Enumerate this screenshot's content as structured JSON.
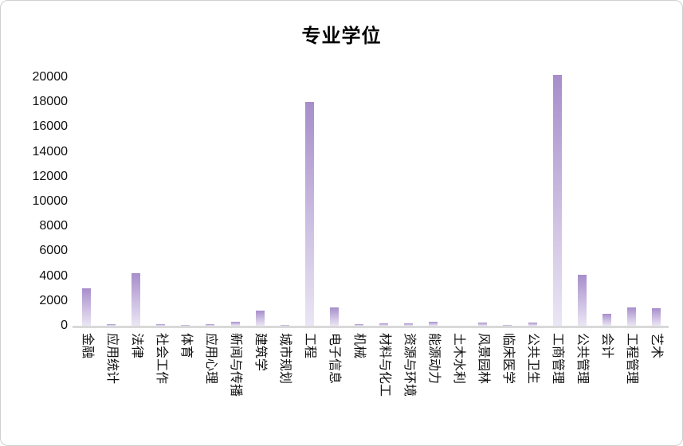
{
  "chart_data": {
    "type": "bar",
    "title": "专业学位",
    "categories": [
      "金融",
      "应用统计",
      "法律",
      "社会工作",
      "体育",
      "应用心理",
      "新闻与传播",
      "建筑学",
      "城市规划",
      "工程",
      "电子信息",
      "机械",
      "材料与化工",
      "资源与环境",
      "能源动力",
      "土木水利",
      "风景园林",
      "临床医学",
      "公共卫生",
      "工商管理",
      "公共管理",
      "会计",
      "工程管理",
      "艺术"
    ],
    "values": [
      3000,
      150,
      4200,
      100,
      80,
      120,
      300,
      1200,
      60,
      18000,
      1450,
      150,
      180,
      180,
      330,
      20,
      280,
      90,
      250,
      20200,
      4100,
      950,
      1450,
      1400
    ],
    "xlabel": "",
    "ylabel": "",
    "ylim": [
      0,
      20000
    ],
    "ytick_step": 2000,
    "ytick_labels": [
      "0",
      "2000",
      "4000",
      "6000",
      "8000",
      "10000",
      "12000",
      "14000",
      "16000",
      "18000",
      "20000"
    ],
    "grid": false,
    "legend": "none",
    "colors": {
      "bar_gradient_top": "#a78ecb",
      "bar_gradient_mid": "#cdbfe2",
      "bar_gradient_bottom": "#eae6f4",
      "axis_line": "#d9d9d9",
      "text": "#111111",
      "title_text": "#000000",
      "background": "#ffffff"
    }
  }
}
